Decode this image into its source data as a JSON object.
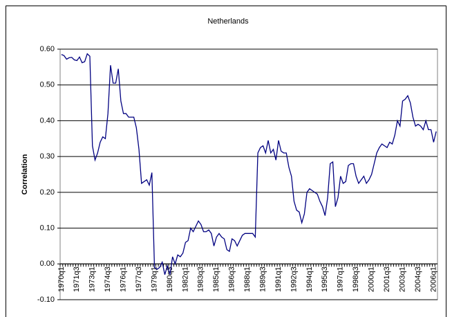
{
  "chart_data": {
    "type": "line",
    "title": "Netherlands",
    "y_label": "Correlation",
    "categories": [
      "1970q1",
      null,
      null,
      null,
      null,
      null,
      "1971q3",
      null,
      null,
      null,
      null,
      null,
      "1973q1",
      null,
      null,
      null,
      null,
      null,
      "1974q3",
      null,
      null,
      null,
      null,
      null,
      "1976q1",
      null,
      null,
      null,
      null,
      null,
      "1977q3",
      null,
      null,
      null,
      null,
      null,
      "1979q1",
      null,
      null,
      null,
      null,
      null,
      "1980q3",
      null,
      null,
      null,
      null,
      null,
      "1982q1",
      null,
      null,
      null,
      null,
      null,
      "1983q3",
      null,
      null,
      null,
      null,
      null,
      "1985q1",
      null,
      null,
      null,
      null,
      null,
      "1986q3",
      null,
      null,
      null,
      null,
      null,
      "1988q1",
      null,
      null,
      null,
      null,
      null,
      "1989q3",
      null,
      null,
      null,
      null,
      null,
      "1991q1",
      null,
      null,
      null,
      null,
      null,
      "1992q3",
      null,
      null,
      null,
      null,
      null,
      "1994q1",
      null,
      null,
      null,
      null,
      null,
      "1995q3",
      null,
      null,
      null,
      null,
      null,
      "1997q1",
      null,
      null,
      null,
      null,
      null,
      "1998q3",
      null,
      null,
      null,
      null,
      null,
      "2000q1",
      null,
      null,
      null,
      null,
      null,
      "2001q3",
      null,
      null,
      null,
      null,
      null,
      "2003q1",
      null,
      null,
      null,
      null,
      null,
      "2004q3",
      null,
      null,
      null,
      null,
      null,
      "2006q1",
      null
    ],
    "series": [
      {
        "name": "Correlation",
        "color": "#000080",
        "values": [
          0.585,
          0.582,
          0.572,
          0.576,
          0.577,
          0.57,
          0.568,
          0.578,
          0.562,
          0.565,
          0.587,
          0.58,
          0.33,
          0.29,
          0.31,
          0.34,
          0.355,
          0.35,
          0.42,
          0.555,
          0.505,
          0.505,
          0.545,
          0.455,
          0.42,
          0.42,
          0.41,
          0.41,
          0.41,
          0.38,
          0.32,
          0.225,
          0.23,
          0.235,
          0.22,
          0.255,
          -0.01,
          -0.015,
          -0.01,
          0.005,
          -0.03,
          -0.005,
          -0.03,
          0.02,
          0.0,
          0.025,
          0.02,
          0.03,
          0.06,
          0.065,
          0.1,
          0.09,
          0.105,
          0.12,
          0.11,
          0.09,
          0.09,
          0.095,
          0.085,
          0.05,
          0.075,
          0.085,
          0.075,
          0.07,
          0.04,
          0.035,
          0.07,
          0.065,
          0.05,
          0.065,
          0.08,
          0.085,
          0.085,
          0.085,
          0.085,
          0.075,
          0.31,
          0.325,
          0.33,
          0.31,
          0.345,
          0.31,
          0.32,
          0.29,
          0.345,
          0.315,
          0.31,
          0.31,
          0.27,
          0.245,
          0.175,
          0.15,
          0.145,
          0.115,
          0.14,
          0.2,
          0.21,
          0.205,
          0.2,
          0.195,
          0.175,
          0.16,
          0.135,
          0.185,
          0.28,
          0.285,
          0.16,
          0.185,
          0.245,
          0.225,
          0.23,
          0.275,
          0.28,
          0.28,
          0.245,
          0.225,
          0.235,
          0.245,
          0.225,
          0.235,
          0.25,
          0.28,
          0.31,
          0.325,
          0.335,
          0.33,
          0.325,
          0.34,
          0.335,
          0.36,
          0.4,
          0.385,
          0.455,
          0.46,
          0.47,
          0.45,
          0.41,
          0.385,
          0.39,
          0.385,
          0.375,
          0.4,
          0.375,
          0.375,
          0.34,
          0.37
        ]
      }
    ],
    "ylim": [
      -0.1,
      0.6
    ],
    "yticks": [
      {
        "value": -0.1,
        "label": "-0.10"
      },
      {
        "value": 0,
        "label": "0.00"
      },
      {
        "value": 0.1,
        "label": "0.10"
      },
      {
        "value": 0.2,
        "label": "0.20"
      },
      {
        "value": 0.3,
        "label": "0.30"
      },
      {
        "value": 0.4,
        "label": "0.40"
      },
      {
        "value": 0.5,
        "label": "0.50"
      },
      {
        "value": 0.6,
        "label": "0.60"
      }
    ],
    "grid": true
  }
}
